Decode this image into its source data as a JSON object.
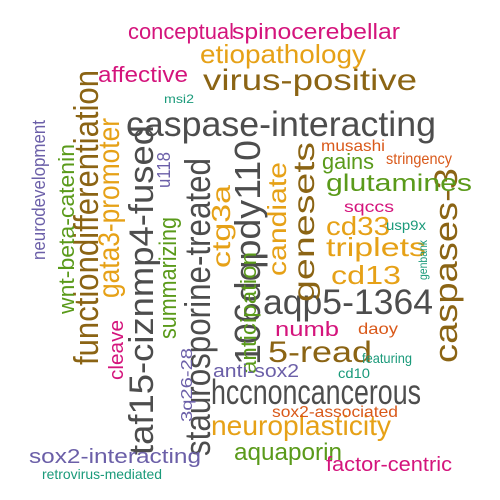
{
  "colors": {
    "gray": "#4d4d4d",
    "gold": "#e6a117",
    "brown": "#8b6414",
    "green": "#5a9a1a",
    "magenta": "#d4147c",
    "purple": "#6b5fa8",
    "teal": "#1a9a7a",
    "orange": "#d9591a"
  },
  "words": [
    {
      "text": "caspase-interacting",
      "color": "gray"
    },
    {
      "text": "aqp5-1364",
      "color": "gray"
    },
    {
      "text": "hccnoncancerous",
      "color": "gray"
    },
    {
      "text": "106dqpdy110",
      "color": "gray"
    },
    {
      "text": "staurosporine-treated",
      "color": "gray"
    },
    {
      "text": "taf15-ciznmp4-fused",
      "color": "gray"
    },
    {
      "text": "functiondifferentiation",
      "color": "brown"
    },
    {
      "text": "genesets",
      "color": "brown"
    },
    {
      "text": "virus-positive",
      "color": "brown"
    },
    {
      "text": "5-read",
      "color": "brown"
    },
    {
      "text": "caspases-3",
      "color": "brown"
    },
    {
      "text": "gata3-promoter",
      "color": "gold"
    },
    {
      "text": "neuroplasticity",
      "color": "gold"
    },
    {
      "text": "etiopathology",
      "color": "gold"
    },
    {
      "text": "candiate",
      "color": "gold"
    },
    {
      "text": "cd33",
      "color": "gold"
    },
    {
      "text": "triplets",
      "color": "gold"
    },
    {
      "text": "cd13",
      "color": "gold"
    },
    {
      "text": "ctg3a",
      "color": "gold"
    },
    {
      "text": "glutamines",
      "color": "green"
    },
    {
      "text": "aquaporin",
      "color": "green"
    },
    {
      "text": "gains",
      "color": "green"
    },
    {
      "text": "summarizing",
      "color": "green"
    },
    {
      "text": "anticipation",
      "color": "green"
    },
    {
      "text": "wnt-beta-catenin",
      "color": "green"
    },
    {
      "text": "spinocerebellar",
      "color": "magenta"
    },
    {
      "text": "conceptual",
      "color": "magenta"
    },
    {
      "text": "affective",
      "color": "magenta"
    },
    {
      "text": "numb",
      "color": "magenta"
    },
    {
      "text": "factor-centric",
      "color": "magenta"
    },
    {
      "text": "cleave",
      "color": "magenta"
    },
    {
      "text": "sqccs",
      "color": "magenta"
    },
    {
      "text": "sox2-interacting",
      "color": "purple"
    },
    {
      "text": "anti-sox2",
      "color": "purple"
    },
    {
      "text": "neurodevelopment",
      "color": "purple"
    },
    {
      "text": "u118",
      "color": "purple"
    },
    {
      "text": "3q26-28",
      "color": "purple"
    },
    {
      "text": "musashi",
      "color": "orange"
    },
    {
      "text": "stringency",
      "color": "orange"
    },
    {
      "text": "daoy",
      "color": "orange"
    },
    {
      "text": "sox2-associated",
      "color": "orange"
    },
    {
      "text": "msi2",
      "color": "teal"
    },
    {
      "text": "usp9x",
      "color": "teal"
    },
    {
      "text": "genbank",
      "color": "teal"
    },
    {
      "text": "featuring",
      "color": "teal"
    },
    {
      "text": "cd10",
      "color": "teal"
    },
    {
      "text": "retrovirus-mediated",
      "color": "teal"
    }
  ]
}
